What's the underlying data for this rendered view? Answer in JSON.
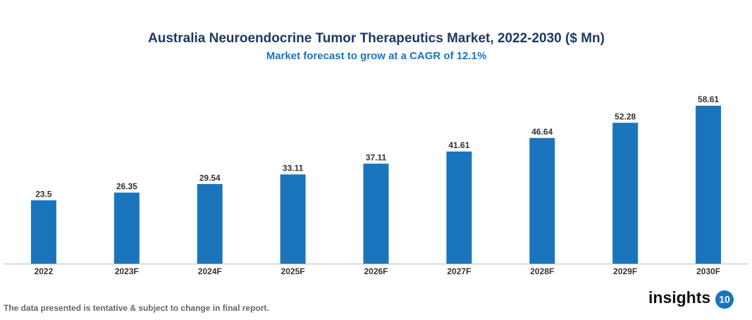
{
  "chart_data": {
    "type": "bar",
    "title": "Australia Neuroendocrine Tumor Therapeutics Market, 2022-2030 ($ Mn)",
    "subtitle": "Market forecast to grow at a CAGR of 12.1%",
    "categories": [
      "2022",
      "2023F",
      "2024F",
      "2025F",
      "2026F",
      "2027F",
      "2028F",
      "2029F",
      "2030F"
    ],
    "values": [
      23.5,
      26.35,
      29.54,
      33.11,
      37.11,
      41.61,
      46.64,
      52.28,
      58.61
    ],
    "color": "#1a75bc"
  },
  "footer": "The data presented is tentative & subject to change in final report.",
  "logo": {
    "text": "insights",
    "badge": "10"
  }
}
